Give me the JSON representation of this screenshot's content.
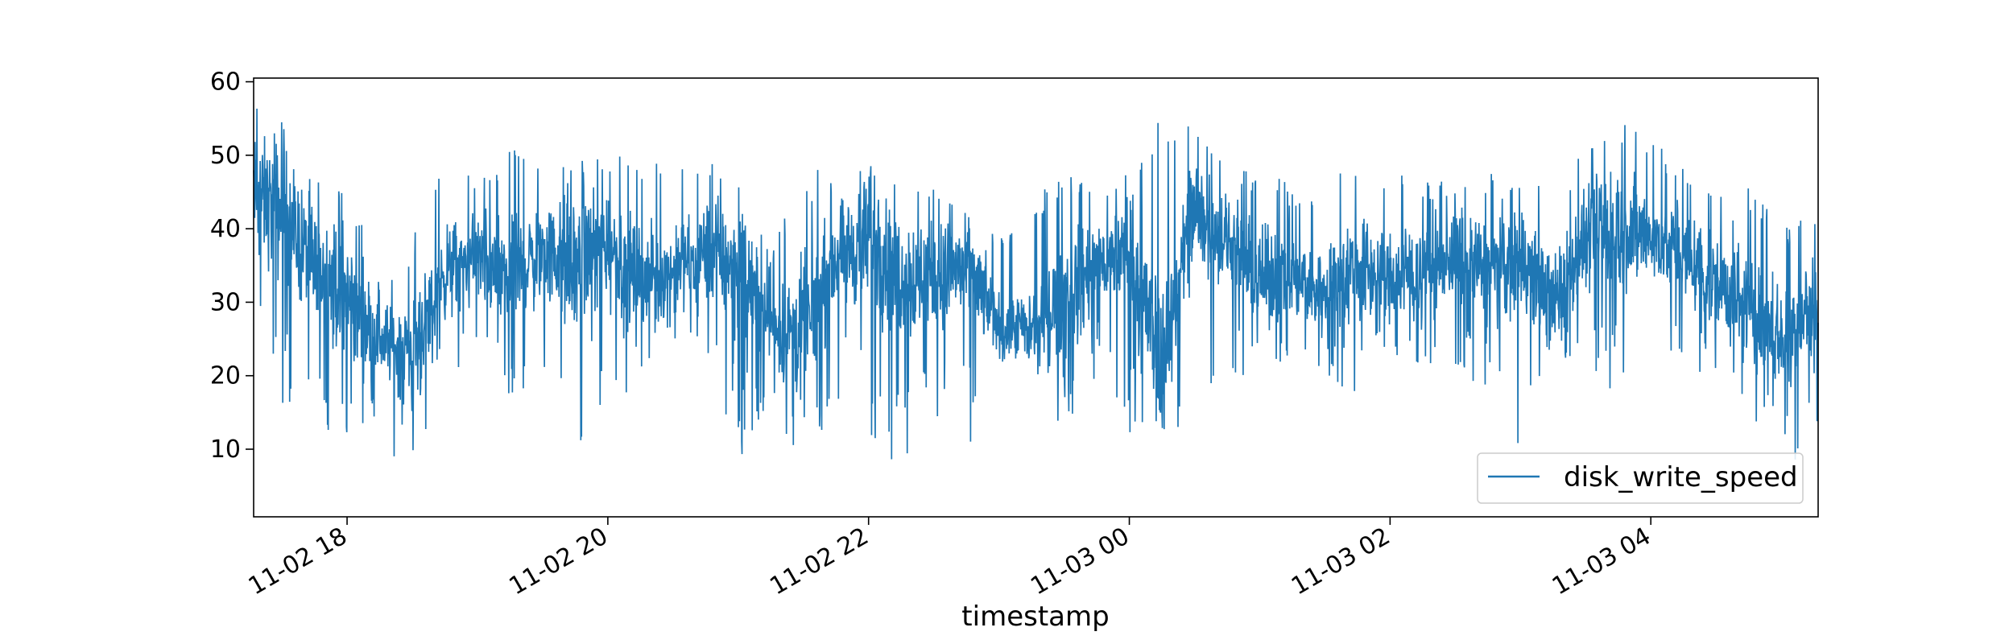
{
  "chart_data": {
    "type": "line",
    "title": "",
    "xlabel": "timestamp",
    "ylabel": "",
    "x_start": "11-02 17:17",
    "x_end": "11-03 05:17",
    "x_ticks": [
      "11-02 18",
      "11-02 20",
      "11-02 22",
      "11-03 00",
      "11-03 02",
      "11-03 04"
    ],
    "y_ticks": [
      10,
      20,
      30,
      40,
      50,
      60
    ],
    "ylim": [
      0.8,
      60.5
    ],
    "grid": false,
    "legend_position": "lower-right",
    "series": [
      {
        "name": "disk_write_speed",
        "color": "#1f77b4",
        "x": [
          "11-02 17:17",
          "11-02 17:30",
          "11-02 17:45",
          "11-02 18:00",
          "11-02 18:15",
          "11-02 18:30",
          "11-02 18:45",
          "11-02 19:00",
          "11-02 19:15",
          "11-02 19:30",
          "11-02 19:45",
          "11-02 20:00",
          "11-02 20:15",
          "11-02 20:30",
          "11-02 20:45",
          "11-02 21:00",
          "11-02 21:15",
          "11-02 21:30",
          "11-02 21:45",
          "11-02 22:00",
          "11-02 22:15",
          "11-02 22:30",
          "11-02 22:45",
          "11-02 23:00",
          "11-02 23:15",
          "11-02 23:30",
          "11-02 23:45",
          "11-03 00:00",
          "11-03 00:15",
          "11-03 00:30",
          "11-03 00:45",
          "11-03 01:00",
          "11-03 01:15",
          "11-03 01:30",
          "11-03 01:45",
          "11-03 02:00",
          "11-03 02:15",
          "11-03 02:30",
          "11-03 02:45",
          "11-03 03:00",
          "11-03 03:15",
          "11-03 03:30",
          "11-03 03:45",
          "11-03 04:00",
          "11-03 04:15",
          "11-03 04:30",
          "11-03 04:45",
          "11-03 05:00",
          "11-03 05:17"
        ],
        "y": [
          45,
          42,
          35,
          31,
          25,
          23,
          34,
          36,
          33,
          37,
          35,
          38,
          33,
          34,
          37,
          35,
          27,
          25,
          36,
          38,
          34,
          33,
          35,
          27,
          26,
          31,
          35,
          37,
          22,
          42,
          38,
          33,
          34,
          31,
          35,
          33,
          34,
          36,
          34,
          36,
          30,
          38,
          40,
          39,
          36,
          33,
          29,
          25,
          30
        ],
        "y_low": [
          27,
          14,
          17,
          5,
          12,
          5,
          22,
          19,
          15,
          21,
          6,
          14,
          20,
          24,
          22,
          6,
          18,
          4,
          16,
          11,
          5,
          15,
          9,
          22,
          21,
          9,
          20,
          12,
          11,
          13,
          21,
          18,
          22,
          20,
          17,
          19,
          22,
          18,
          17,
          10,
          20,
          22,
          14,
          25,
          22,
          18,
          13,
          10,
          6
        ],
        "y_high": [
          58,
          57,
          49,
          48,
          33,
          39,
          49,
          47,
          51,
          49,
          49,
          51,
          49,
          50,
          51,
          48,
          36,
          50,
          46,
          50,
          45,
          46,
          42,
          40,
          44,
          48,
          46,
          48,
          57,
          54,
          49,
          48,
          46,
          47,
          49,
          48,
          47,
          47,
          48,
          46,
          46,
          51,
          56,
          52,
          49,
          48,
          47,
          40,
          43
        ]
      }
    ]
  }
}
